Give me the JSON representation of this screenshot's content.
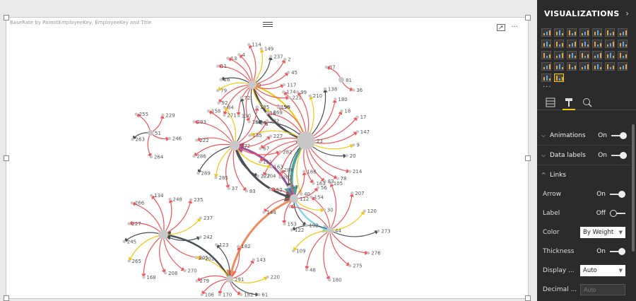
{
  "visual": {
    "title": "BaseRate by ParentEmployeeKey, EmployeeKey and Title",
    "tools": [
      "focus-mode-icon",
      "more-options-icon"
    ],
    "more_label": "···"
  },
  "graph": {
    "link_colors": {
      "red": "#f2555a",
      "yellow": "#f2c80f",
      "dark": "#4a5055",
      "blue": "#8ad4eb",
      "purple": "#9c4f9a",
      "orange": "#f08a5d",
      "teal": "#4ea3a0"
    },
    "node_color": "#c8c8c8",
    "clusters": [
      {
        "id": "3",
        "labels": [
          "117",
          "221",
          "56",
          "269",
          "6",
          "162",
          "130",
          "271",
          "92",
          "79",
          "16",
          "11",
          "13",
          "4",
          "114",
          "149",
          "237",
          "2",
          "45"
        ]
      },
      {
        "id": "81",
        "labels": [
          "36",
          "37"
        ]
      },
      {
        "id": "23",
        "labels": [
          "163",
          "40",
          "53",
          "201",
          "204",
          "111",
          "67",
          "135",
          "74",
          "16",
          "199",
          "174",
          "99",
          "210",
          "138",
          "180",
          "18",
          "17",
          "147",
          "9",
          "20",
          "214",
          "78",
          "83"
        ]
      },
      {
        "id": "272",
        "labels": [
          "285",
          "289",
          "286",
          "222",
          "293",
          "158",
          "84",
          "72",
          "185",
          "282",
          "227",
          "282",
          "163",
          "227",
          "83",
          "37"
        ]
      },
      {
        "id": "51",
        "labels": [
          "263",
          "255",
          "229",
          "246",
          "264"
        ]
      },
      {
        "id": "112",
        "labels": [
          "152",
          "288",
          "186",
          "56",
          "30",
          "192",
          "153",
          "144"
        ]
      },
      {
        "id": "44",
        "labels": [
          "154",
          "105",
          "207",
          "120",
          "273",
          "276",
          "275",
          "180",
          "48",
          "109",
          "122",
          "2"
        ]
      },
      {
        "id": "276b",
        "labels": [
          "248",
          "235",
          "237",
          "242",
          "202",
          "270",
          "208",
          "168",
          "265",
          "245",
          "227",
          "266",
          "134"
        ]
      },
      {
        "id": "291",
        "labels": [
          "143",
          "220",
          "61",
          "182",
          "170",
          "106",
          "279",
          "205",
          "123",
          "182"
        ]
      }
    ]
  },
  "panel": {
    "title": "VISUALIZATIONS",
    "tabs": [
      "fields-tab-icon",
      "format-tab-icon",
      "analytics-tab-icon"
    ],
    "more_label": "···",
    "sections": {
      "animations": {
        "label": "Animations",
        "state": "On"
      },
      "data_labels": {
        "label": "Data labels",
        "state": "On"
      },
      "links": {
        "label": "Links"
      }
    },
    "rows": {
      "arrow": {
        "label": "Arrow",
        "state": "On"
      },
      "label": {
        "label": "Label",
        "state": "Off"
      },
      "color": {
        "label": "Color",
        "value": "By Weight"
      },
      "thickness": {
        "label": "Thickness",
        "state": "On"
      },
      "display_units": {
        "label": "Display ...",
        "value": "Auto"
      },
      "decimal_places": {
        "label": "Decimal ...",
        "placeholder": "Auto"
      }
    }
  }
}
